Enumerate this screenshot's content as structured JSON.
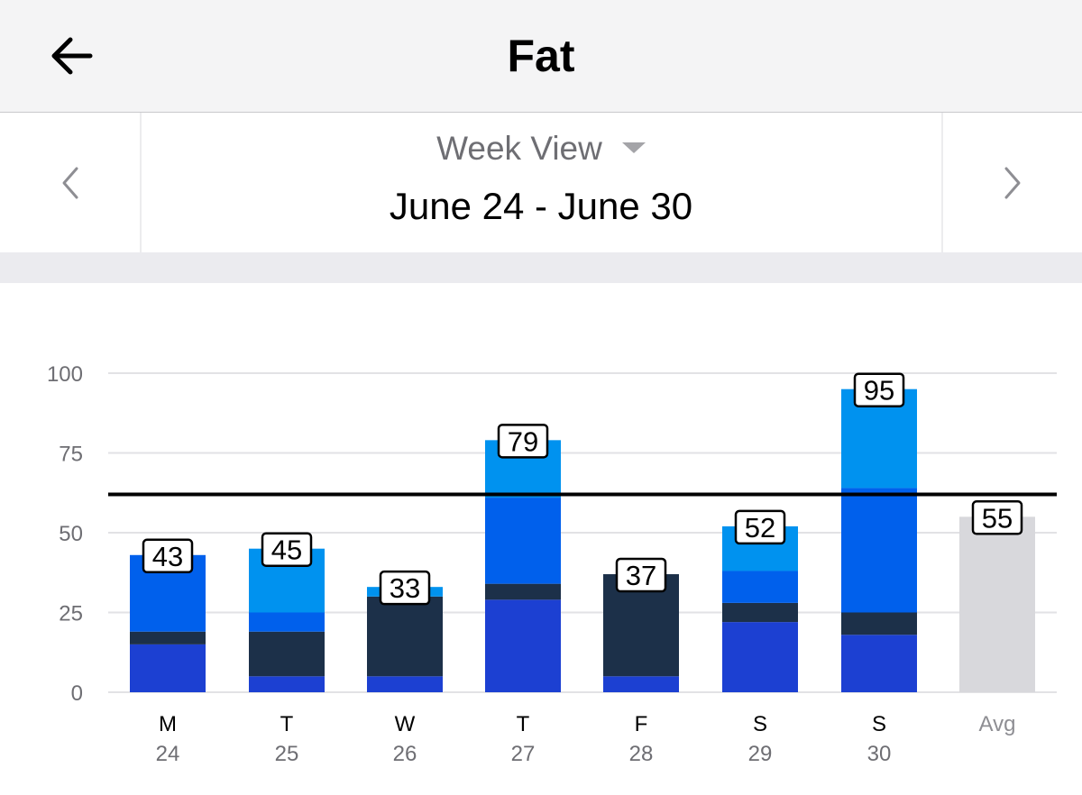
{
  "header": {
    "title": "Fat",
    "back_icon": "arrow-left-icon"
  },
  "nav": {
    "view_label": "Week View",
    "date_range": "June 24 - June 30",
    "prev_icon": "chevron-left-icon",
    "next_icon": "chevron-right-icon"
  },
  "chart_data": {
    "type": "bar",
    "stacked": true,
    "categories": [
      "M",
      "T",
      "W",
      "T",
      "F",
      "S",
      "S",
      "Avg"
    ],
    "dates": [
      "24",
      "25",
      "26",
      "27",
      "28",
      "29",
      "30",
      ""
    ],
    "totals": [
      43,
      45,
      33,
      79,
      37,
      52,
      95,
      55
    ],
    "series": [
      {
        "color": "#1c40d2",
        "values": [
          15,
          5,
          5,
          29,
          5,
          22,
          18,
          0
        ]
      },
      {
        "color": "#1c3049",
        "values": [
          4,
          14,
          25,
          5,
          32,
          6,
          7,
          0
        ]
      },
      {
        "color": "#0060ec",
        "values": [
          24,
          6,
          0,
          27,
          0,
          10,
          39,
          0
        ]
      },
      {
        "color": "#0092ef",
        "values": [
          0,
          20,
          3,
          18,
          0,
          14,
          31,
          0
        ]
      },
      {
        "color": "#d8d8dc",
        "values": [
          0,
          0,
          0,
          0,
          0,
          0,
          0,
          55
        ]
      }
    ],
    "goal": 62,
    "yticks": [
      0,
      25,
      50,
      75,
      100
    ],
    "ylim": [
      0,
      100
    ],
    "grid": true
  }
}
